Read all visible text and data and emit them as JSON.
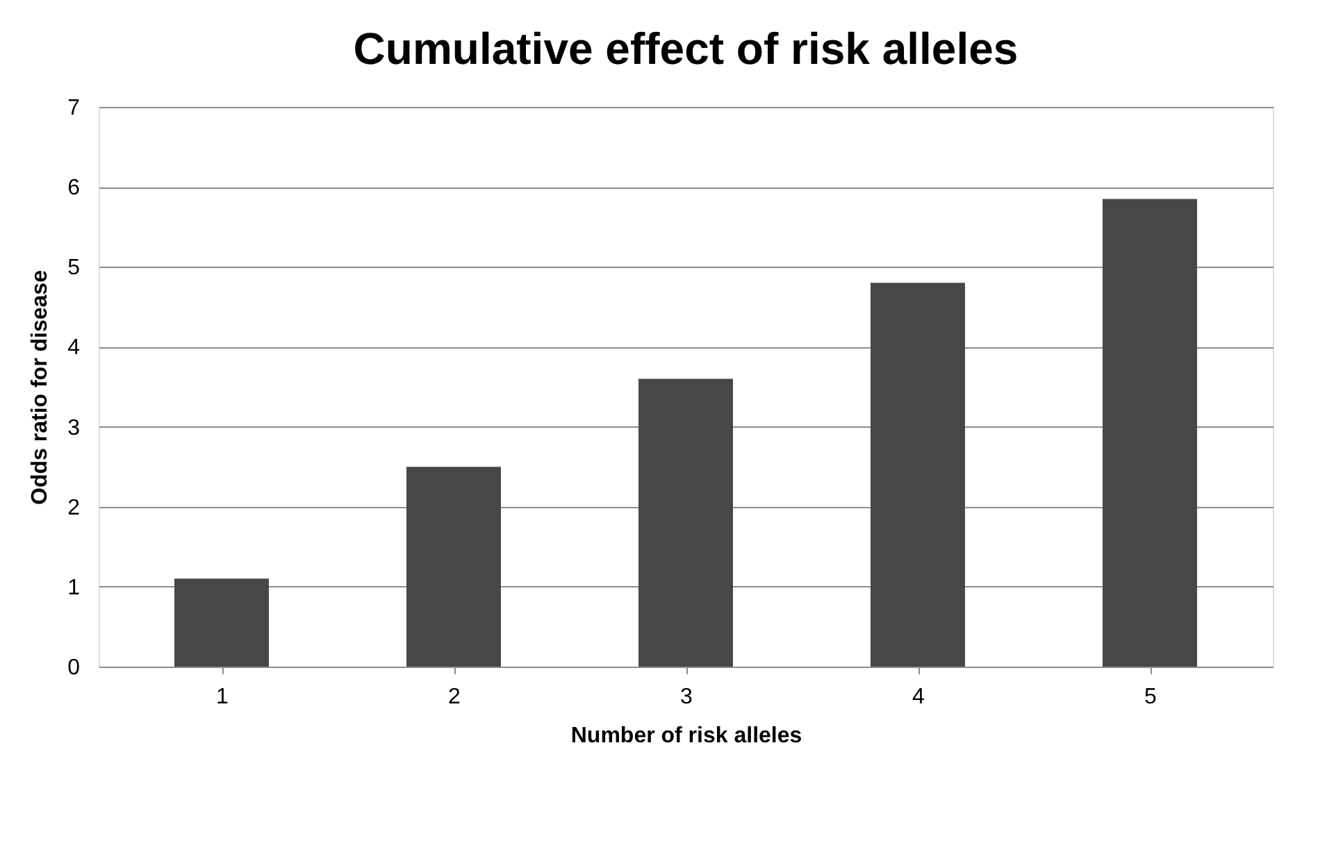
{
  "chart_data": {
    "type": "bar",
    "title": "Cumulative effect of risk alleles",
    "xlabel": "Number of risk alleles",
    "ylabel": "Odds ratio for disease",
    "categories": [
      "1",
      "2",
      "3",
      "4",
      "5"
    ],
    "values": [
      1.1,
      2.5,
      3.6,
      4.8,
      5.85
    ],
    "color": "#474747",
    "ylim": [
      0,
      7
    ],
    "yticks": [
      0,
      1,
      2,
      3,
      4,
      5,
      6,
      7
    ],
    "grid": "y"
  }
}
